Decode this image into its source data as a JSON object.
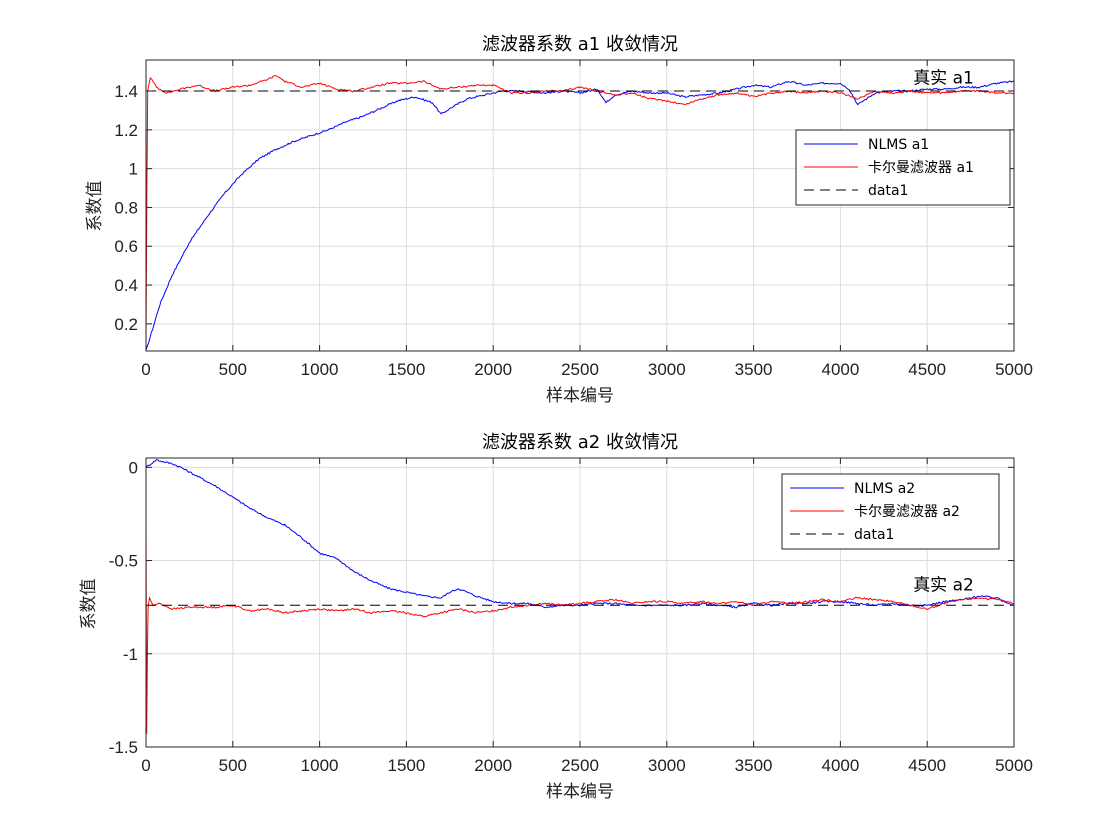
{
  "chart_data": [
    {
      "type": "line",
      "title": "滤波器系数 a1 收敛情况",
      "xlabel": "样本编号",
      "ylabel": "系数值",
      "xlim": [
        0,
        5000
      ],
      "ylim": [
        0.06,
        1.56
      ],
      "xticks": [
        0,
        500,
        1000,
        1500,
        2000,
        2500,
        3000,
        3500,
        4000,
        4500,
        5000
      ],
      "yticks": [
        0.2,
        0.4,
        0.6,
        0.8,
        1,
        1.2,
        1.4
      ],
      "ytick_labels": [
        "0.2",
        "0.4",
        "0.6",
        "0.8",
        "1",
        "1.2",
        "1.4"
      ],
      "grid": true,
      "legend_position": "right",
      "annotation": {
        "text": "真实 a1",
        "x": 4500,
        "y": 1.44
      },
      "series": [
        {
          "name": "NLMS a1",
          "color": "#0000ff",
          "x": [
            0,
            30,
            80,
            150,
            250,
            350,
            450,
            550,
            650,
            750,
            850,
            950,
            1050,
            1150,
            1250,
            1350,
            1450,
            1550,
            1650,
            1700,
            1750,
            1850,
            1950,
            2050,
            2150,
            2300,
            2400,
            2500,
            2600,
            2650,
            2700,
            2800,
            2900,
            3000,
            3100,
            3200,
            3300,
            3400,
            3500,
            3600,
            3700,
            3800,
            3900,
            4000,
            4050,
            4100,
            4150,
            4200,
            4300,
            4400,
            4500,
            4600,
            4700,
            4800,
            4900,
            5000
          ],
          "y": [
            0.06,
            0.15,
            0.3,
            0.45,
            0.62,
            0.75,
            0.87,
            0.97,
            1.05,
            1.1,
            1.14,
            1.17,
            1.2,
            1.24,
            1.27,
            1.31,
            1.35,
            1.37,
            1.34,
            1.28,
            1.31,
            1.36,
            1.38,
            1.4,
            1.4,
            1.39,
            1.4,
            1.39,
            1.41,
            1.34,
            1.38,
            1.4,
            1.39,
            1.39,
            1.37,
            1.38,
            1.39,
            1.41,
            1.43,
            1.42,
            1.45,
            1.43,
            1.44,
            1.44,
            1.41,
            1.33,
            1.36,
            1.39,
            1.4,
            1.4,
            1.41,
            1.41,
            1.42,
            1.42,
            1.44,
            1.45
          ]
        },
        {
          "name": "卡尔曼滤波器 a1",
          "color": "#ff0000",
          "x": [
            0,
            5,
            10,
            25,
            60,
            120,
            200,
            300,
            400,
            500,
            600,
            700,
            750,
            800,
            900,
            1000,
            1100,
            1200,
            1300,
            1400,
            1500,
            1600,
            1700,
            1800,
            1900,
            2000,
            2100,
            2200,
            2300,
            2400,
            2500,
            2600,
            2700,
            2800,
            2900,
            3000,
            3100,
            3200,
            3300,
            3400,
            3500,
            3600,
            3700,
            3800,
            3900,
            4000,
            4100,
            4200,
            4300,
            4400,
            4500,
            4600,
            4700,
            4800,
            4900,
            5000
          ],
          "y": [
            0.1,
            0.9,
            1.4,
            1.47,
            1.42,
            1.39,
            1.41,
            1.43,
            1.4,
            1.42,
            1.43,
            1.46,
            1.48,
            1.45,
            1.42,
            1.44,
            1.41,
            1.4,
            1.42,
            1.44,
            1.44,
            1.45,
            1.41,
            1.42,
            1.43,
            1.43,
            1.39,
            1.39,
            1.4,
            1.4,
            1.42,
            1.4,
            1.38,
            1.39,
            1.36,
            1.35,
            1.33,
            1.36,
            1.38,
            1.39,
            1.37,
            1.39,
            1.4,
            1.39,
            1.4,
            1.39,
            1.36,
            1.4,
            1.39,
            1.4,
            1.39,
            1.39,
            1.4,
            1.4,
            1.39,
            1.39
          ]
        },
        {
          "name": "data1",
          "color": "#000000",
          "dash": true,
          "x": [
            0,
            5000
          ],
          "y": [
            1.4,
            1.4
          ]
        }
      ]
    },
    {
      "type": "line",
      "title": "滤波器系数 a2 收敛情况",
      "xlabel": "样本编号",
      "ylabel": "系数值",
      "xlim": [
        0,
        5000
      ],
      "ylim": [
        -1.5,
        0.05
      ],
      "xticks": [
        0,
        500,
        1000,
        1500,
        2000,
        2500,
        3000,
        3500,
        4000,
        4500,
        5000
      ],
      "yticks": [
        -1.5,
        -1,
        -0.5,
        0
      ],
      "ytick_labels": [
        "-1.5",
        "-1",
        "-0.5",
        "0"
      ],
      "grid": true,
      "legend_position": "top-right",
      "annotation": {
        "text": "真实 a2",
        "x": 4500,
        "y": -0.66
      },
      "series": [
        {
          "name": "NLMS a2",
          "color": "#0000ff",
          "x": [
            0,
            30,
            60,
            100,
            150,
            200,
            300,
            400,
            500,
            600,
            700,
            800,
            900,
            1000,
            1100,
            1200,
            1300,
            1400,
            1500,
            1600,
            1700,
            1750,
            1800,
            1900,
            2000,
            2100,
            2200,
            2300,
            2400,
            2500,
            2600,
            2700,
            2800,
            2900,
            3000,
            3100,
            3200,
            3300,
            3400,
            3500,
            3600,
            3700,
            3800,
            3900,
            4000,
            4100,
            4200,
            4300,
            4400,
            4500,
            4600,
            4700,
            4800,
            4900,
            5000
          ],
          "y": [
            0.0,
            0.02,
            0.04,
            0.03,
            0.02,
            0.0,
            -0.05,
            -0.1,
            -0.16,
            -0.22,
            -0.27,
            -0.31,
            -0.38,
            -0.46,
            -0.49,
            -0.56,
            -0.61,
            -0.65,
            -0.67,
            -0.69,
            -0.7,
            -0.67,
            -0.65,
            -0.69,
            -0.72,
            -0.73,
            -0.73,
            -0.75,
            -0.74,
            -0.74,
            -0.73,
            -0.73,
            -0.74,
            -0.74,
            -0.74,
            -0.74,
            -0.73,
            -0.74,
            -0.75,
            -0.73,
            -0.74,
            -0.73,
            -0.73,
            -0.72,
            -0.72,
            -0.73,
            -0.74,
            -0.73,
            -0.74,
            -0.74,
            -0.72,
            -0.71,
            -0.69,
            -0.7,
            -0.74
          ]
        },
        {
          "name": "卡尔曼滤波器 a2",
          "color": "#ff0000",
          "x": [
            0,
            4,
            8,
            12,
            20,
            40,
            80,
            150,
            250,
            400,
            500,
            600,
            700,
            800,
            900,
            1000,
            1100,
            1200,
            1300,
            1400,
            1500,
            1600,
            1700,
            1800,
            1900,
            2000,
            2100,
            2200,
            2300,
            2400,
            2500,
            2600,
            2700,
            2800,
            2900,
            3000,
            3100,
            3200,
            3300,
            3400,
            3500,
            3600,
            3700,
            3800,
            3900,
            4000,
            4100,
            4200,
            4300,
            4400,
            4500,
            4600,
            4700,
            4800,
            4900,
            5000
          ],
          "y": [
            -0.3,
            -1.43,
            -1.0,
            -0.75,
            -0.7,
            -0.74,
            -0.73,
            -0.76,
            -0.75,
            -0.75,
            -0.74,
            -0.77,
            -0.76,
            -0.78,
            -0.77,
            -0.76,
            -0.77,
            -0.76,
            -0.78,
            -0.77,
            -0.78,
            -0.8,
            -0.78,
            -0.76,
            -0.78,
            -0.77,
            -0.75,
            -0.74,
            -0.73,
            -0.74,
            -0.73,
            -0.72,
            -0.71,
            -0.73,
            -0.72,
            -0.72,
            -0.73,
            -0.72,
            -0.73,
            -0.72,
            -0.74,
            -0.72,
            -0.73,
            -0.72,
            -0.71,
            -0.72,
            -0.7,
            -0.71,
            -0.72,
            -0.74,
            -0.76,
            -0.73,
            -0.71,
            -0.7,
            -0.71,
            -0.73
          ]
        },
        {
          "name": "data1",
          "color": "#000000",
          "dash": true,
          "x": [
            0,
            5000
          ],
          "y": [
            -0.74,
            -0.74
          ]
        }
      ]
    }
  ]
}
